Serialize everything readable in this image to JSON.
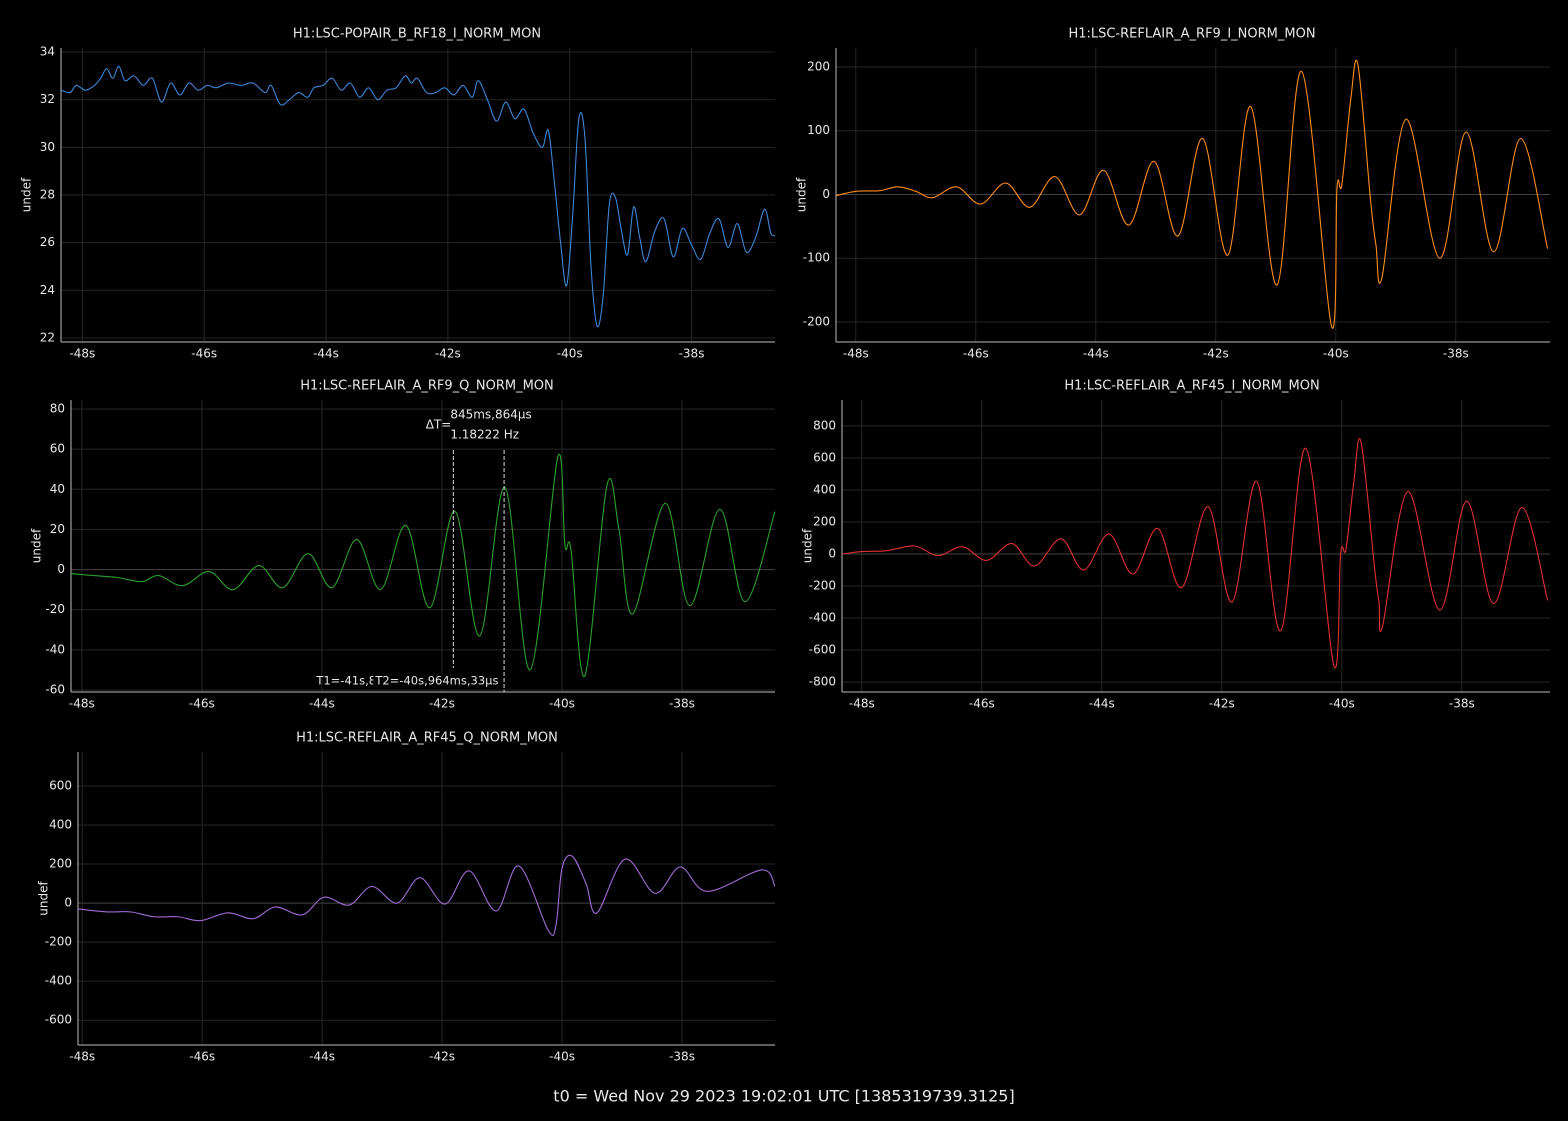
{
  "chart_data": [
    {
      "type": "line",
      "title": "H1:LSC-POPAIR_B_RF18_I_NORM_MON",
      "ylabel": "undef",
      "color": "#3d86d8",
      "x": [
        -48.35,
        -48.2,
        -48.1,
        -47.95,
        -47.8,
        -47.7,
        -47.6,
        -47.5,
        -47.4,
        -47.3,
        -47.15,
        -47.0,
        -46.85,
        -46.7,
        -46.55,
        -46.4,
        -46.25,
        -46.1,
        -45.95,
        -45.8,
        -45.6,
        -45.4,
        -45.2,
        -45.0,
        -44.9,
        -44.75,
        -44.6,
        -44.45,
        -44.3,
        -44.2,
        -44.05,
        -43.9,
        -43.75,
        -43.6,
        -43.45,
        -43.3,
        -43.15,
        -43.0,
        -42.85,
        -42.7,
        -42.6,
        -42.5,
        -42.35,
        -42.2,
        -42.05,
        -41.9,
        -41.75,
        -41.6,
        -41.5,
        -41.35,
        -41.2,
        -41.05,
        -40.9,
        -40.75,
        -40.6,
        -40.45,
        -40.35,
        -40.25,
        -40.15,
        -40.05,
        -39.95,
        -39.85,
        -39.75,
        -39.65,
        -39.55,
        -39.45,
        -39.35,
        -39.25,
        -39.15,
        -39.05,
        -38.95,
        -38.85,
        -38.75,
        -38.6,
        -38.45,
        -38.3,
        -38.15,
        -38.0,
        -37.85,
        -37.7,
        -37.55,
        -37.4,
        -37.25,
        -37.1,
        -36.95,
        -36.8,
        -36.7,
        -36.63
      ],
      "values": [
        32.4,
        32.3,
        32.6,
        32.4,
        32.6,
        32.9,
        33.3,
        32.9,
        33.4,
        32.8,
        33.0,
        32.6,
        32.9,
        31.9,
        32.7,
        32.2,
        32.7,
        32.4,
        32.6,
        32.5,
        32.7,
        32.6,
        32.7,
        32.3,
        32.6,
        31.8,
        32.0,
        32.3,
        32.1,
        32.5,
        32.6,
        32.9,
        32.4,
        32.7,
        32.1,
        32.5,
        32.0,
        32.4,
        32.5,
        33.0,
        32.7,
        32.9,
        32.3,
        32.3,
        32.5,
        32.2,
        32.6,
        32.1,
        32.8,
        32.0,
        31.1,
        31.9,
        31.2,
        31.6,
        30.6,
        30.0,
        30.7,
        28.5,
        26.0,
        24.2,
        27.2,
        31.2,
        30.4,
        25.0,
        22.5,
        23.8,
        27.6,
        27.9,
        26.5,
        25.5,
        27.5,
        26.2,
        25.2,
        26.5,
        27.0,
        25.4,
        26.6,
        25.9,
        25.3,
        26.4,
        27.0,
        25.8,
        26.8,
        25.6,
        26.2,
        27.4,
        26.4,
        26.3
      ],
      "xlim": [
        -48.35,
        -36.63
      ],
      "ylim": [
        21.83,
        34.17
      ],
      "xticks": [
        {
          "value": -48,
          "label": "-48s"
        },
        {
          "value": -46,
          "label": "-46s"
        },
        {
          "value": -44,
          "label": "-44s"
        },
        {
          "value": -42,
          "label": "-42s"
        },
        {
          "value": -40,
          "label": "-40s"
        },
        {
          "value": -38,
          "label": "-38s"
        }
      ],
      "yticks": [
        22,
        24,
        26,
        28,
        30,
        32,
        34
      ],
      "grid": true
    },
    {
      "type": "line",
      "title": "H1:LSC-REFLAIR_A_RF9_I_NORM_MON",
      "ylabel": "undef",
      "color": "#ff8c1a",
      "x": [
        -48.33,
        -48.0,
        -47.6,
        -47.3,
        -47.0,
        -46.72,
        -46.32,
        -45.92,
        -45.5,
        -45.1,
        -44.68,
        -44.27,
        -43.87,
        -43.45,
        -43.03,
        -42.63,
        -42.22,
        -41.8,
        -41.42,
        -40.98,
        -40.57,
        -40.07,
        -39.98,
        -39.9,
        -39.75,
        -39.63,
        -39.42,
        -39.33,
        -39.23,
        -38.83,
        -38.27,
        -37.83,
        -37.37,
        -36.92,
        -36.47
      ],
      "values": [
        -2,
        5,
        6,
        12,
        5,
        -5,
        12,
        -15,
        18,
        -20,
        28,
        -32,
        38,
        -48,
        52,
        -65,
        88,
        -95,
        138,
        -142,
        193,
        -207,
        10,
        15,
        150,
        203,
        -10,
        -80,
        -130,
        118,
        -100,
        98,
        -90,
        88,
        -85
      ],
      "xlim": [
        -48.33,
        -36.43
      ],
      "ylim": [
        -231.4,
        229.8
      ],
      "xticks": [
        {
          "value": -48,
          "label": "-48s"
        },
        {
          "value": -46,
          "label": "-46s"
        },
        {
          "value": -44,
          "label": "-44s"
        },
        {
          "value": -42,
          "label": "-42s"
        },
        {
          "value": -40,
          "label": "-40s"
        },
        {
          "value": -38,
          "label": "-38s"
        }
      ],
      "yticks": [
        -200,
        -100,
        0,
        100,
        200
      ],
      "grid": true
    },
    {
      "type": "line",
      "title": "H1:LSC-REFLAIR_A_RF9_Q_NORM_MON",
      "ylabel": "undef",
      "color": "#2ca02c",
      "x": [
        -48.18,
        -47.8,
        -47.4,
        -47.0,
        -46.72,
        -46.32,
        -45.88,
        -45.48,
        -45.05,
        -44.65,
        -44.23,
        -43.83,
        -43.42,
        -43.02,
        -42.6,
        -42.2,
        -41.78,
        -41.37,
        -40.95,
        -40.53,
        -40.07,
        -39.95,
        -39.85,
        -39.62,
        -39.25,
        -39.05,
        -38.82,
        -38.28,
        -37.87,
        -37.37,
        -36.95,
        -36.45
      ],
      "values": [
        -2,
        -3,
        -4,
        -6,
        -3,
        -8,
        -1,
        -10,
        2,
        -9,
        8,
        -9,
        15,
        -10,
        22,
        -19,
        29,
        -33,
        41,
        -50,
        56,
        12,
        10,
        -53,
        42,
        20,
        -22,
        33,
        -18,
        30,
        -16,
        29
      ],
      "xlim": [
        -48.18,
        -36.45
      ],
      "ylim": [
        -61,
        84.5
      ],
      "xticks": [
        {
          "value": -48,
          "label": "-48s"
        },
        {
          "value": -46,
          "label": "-46s"
        },
        {
          "value": -44,
          "label": "-44s"
        },
        {
          "value": -42,
          "label": "-42s"
        },
        {
          "value": -40,
          "label": "-40s"
        },
        {
          "value": -38,
          "label": "-38s"
        }
      ],
      "yticks": [
        -60,
        -40,
        -20,
        0,
        20,
        40,
        60,
        80
      ],
      "grid": true,
      "cursors": [
        -41.809897,
        -40.964033
      ],
      "annotations": [
        "ΔT=",
        "845ms,864µs",
        "1.18222 Hz",
        "T1=-41s,8",
        "T2=-40s,964ms,33µs"
      ]
    },
    {
      "type": "line",
      "title": "H1:LSC-REFLAIR_A_RF45_I_NORM_MON",
      "ylabel": "undef",
      "color": "#e03030",
      "x": [
        -48.33,
        -48.0,
        -47.6,
        -47.12,
        -46.73,
        -46.32,
        -45.92,
        -45.5,
        -45.12,
        -44.68,
        -44.3,
        -43.88,
        -43.48,
        -43.07,
        -42.67,
        -42.23,
        -41.83,
        -41.42,
        -41.02,
        -40.6,
        -40.13,
        -40.02,
        -39.93,
        -39.8,
        -39.68,
        -39.45,
        -39.38,
        -39.32,
        -38.9,
        -38.37,
        -37.92,
        -37.47,
        -37.0,
        -36.57
      ],
      "values": [
        0,
        15,
        20,
        50,
        -10,
        45,
        -40,
        65,
        -75,
        95,
        -100,
        125,
        -125,
        160,
        -210,
        295,
        -300,
        455,
        -480,
        660,
        -700,
        0,
        30,
        450,
        700,
        -100,
        -300,
        -450,
        390,
        -350,
        330,
        -310,
        290,
        -290
      ],
      "xlim": [
        -48.33,
        -36.53
      ],
      "ylim": [
        -862,
        962
      ],
      "xticks": [
        {
          "value": -48,
          "label": "-48s"
        },
        {
          "value": -46,
          "label": "-46s"
        },
        {
          "value": -44,
          "label": "-44s"
        },
        {
          "value": -42,
          "label": "-42s"
        },
        {
          "value": -40,
          "label": "-40s"
        },
        {
          "value": -38,
          "label": "-38s"
        }
      ],
      "yticks": [
        -800,
        -600,
        -400,
        -200,
        0,
        200,
        400,
        600,
        800
      ],
      "grid": true
    },
    {
      "type": "line",
      "title": "H1:LSC-REFLAIR_A_RF45_Q_NORM_MON",
      "ylabel": "undef",
      "color": "#a26bd6",
      "x": [
        -48.07,
        -47.6,
        -47.2,
        -46.8,
        -46.4,
        -46.03,
        -45.57,
        -45.15,
        -44.78,
        -44.33,
        -43.97,
        -43.55,
        -43.17,
        -42.75,
        -42.37,
        -41.95,
        -41.55,
        -41.1,
        -40.72,
        -40.23,
        -40.1,
        -40.0,
        -39.83,
        -39.6,
        -39.42,
        -38.95,
        -38.45,
        -38.03,
        -37.58,
        -36.67,
        -36.45
      ],
      "values": [
        -30,
        -45,
        -45,
        -70,
        -70,
        -90,
        -50,
        -80,
        -20,
        -60,
        30,
        -10,
        85,
        0,
        130,
        -5,
        165,
        -40,
        190,
        -140,
        -110,
        180,
        240,
        100,
        -50,
        225,
        50,
        185,
        60,
        170,
        85
      ],
      "xlim": [
        -48.07,
        -36.45
      ],
      "ylim": [
        -727,
        774
      ],
      "xticks": [
        {
          "value": -48,
          "label": "-48s"
        },
        {
          "value": -46,
          "label": "-46s"
        },
        {
          "value": -44,
          "label": "-44s"
        },
        {
          "value": -42,
          "label": "-42s"
        },
        {
          "value": -40,
          "label": "-40s"
        },
        {
          "value": -38,
          "label": "-38s"
        }
      ],
      "yticks": [
        -600,
        -400,
        -200,
        0,
        200,
        400,
        600
      ],
      "grid": true
    }
  ],
  "footer": "t0 = Wed Nov 29 2023 19:02:01 UTC [1385319739.3125]"
}
